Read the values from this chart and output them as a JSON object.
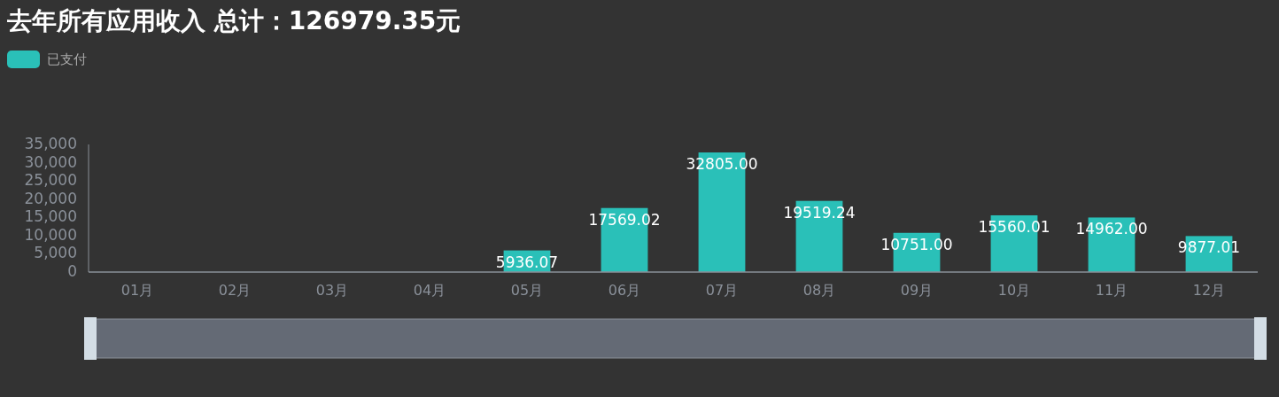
{
  "chart_data": {
    "type": "bar",
    "title": "去年所有应用收入 总计：126979.35元",
    "categories": [
      "01月",
      "02月",
      "03月",
      "04月",
      "05月",
      "06月",
      "07月",
      "08月",
      "09月",
      "10月",
      "11月",
      "12月"
    ],
    "series": [
      {
        "name": "已支付",
        "color": "#2ac0b8",
        "values": [
          0,
          0,
          0,
          0,
          5936.07,
          17569.02,
          32805,
          19519.24,
          10751,
          15560.01,
          14962,
          9877.01
        ],
        "value_labels": [
          null,
          null,
          null,
          null,
          "5936.07",
          "17569.02",
          "32805.00",
          "19519.24",
          "10751.00",
          "15560.01",
          "14962.00",
          "9877.01"
        ]
      }
    ],
    "ylim": [
      0,
      35000
    ],
    "yticks": [
      {
        "value": 0,
        "label": "0"
      },
      {
        "value": 5000,
        "label": "5,000"
      },
      {
        "value": 10000,
        "label": "10,000"
      },
      {
        "value": 15000,
        "label": "15,000"
      },
      {
        "value": 20000,
        "label": "20,000"
      },
      {
        "value": 25000,
        "label": "25,000"
      },
      {
        "value": 30000,
        "label": "30,000"
      },
      {
        "value": 35000,
        "label": "35,000"
      }
    ],
    "legend": "top left",
    "grid": false
  }
}
